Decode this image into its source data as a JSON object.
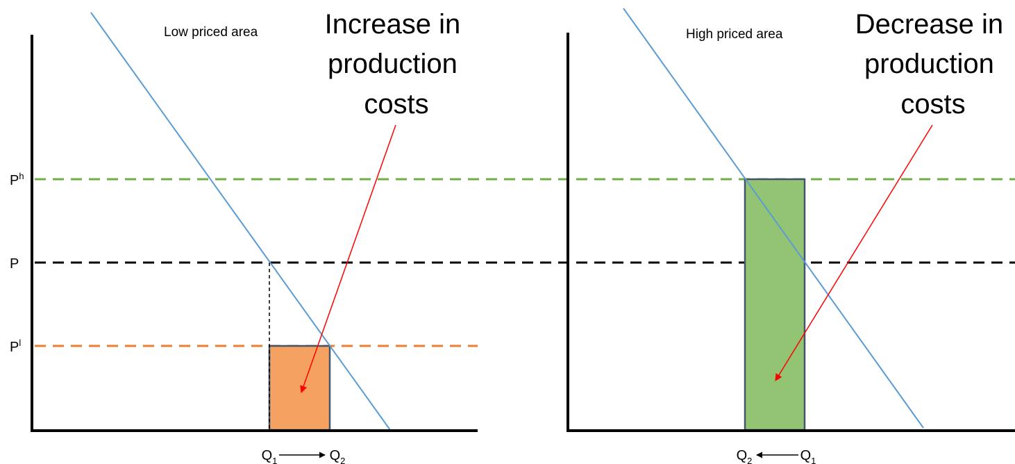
{
  "axis_labels": {
    "ph": "P",
    "ph_sup": "h",
    "p": "P",
    "pl": "P",
    "pl_sup": "l"
  },
  "left_panel": {
    "title": "Low priced area",
    "annotation": [
      "Increase in",
      "production",
      "costs"
    ],
    "q_left": "Q",
    "q_left_sub": "1",
    "q_right": "Q",
    "q_right_sub": "2"
  },
  "right_panel": {
    "title": "High priced area",
    "annotation": [
      "Decrease in",
      "production",
      "costs"
    ],
    "q_left": "Q",
    "q_left_sub": "2",
    "q_right": "Q",
    "q_right_sub": "1"
  },
  "colors": {
    "demand_line": "#5b9bd5",
    "ph_line": "#70ad47",
    "p_line": "#000000",
    "pl_line": "#ed7d31",
    "orange_fill": "#f4a161",
    "green_fill": "#92c473",
    "rect_border": "#44546a",
    "arrow": "#ff0000"
  }
}
